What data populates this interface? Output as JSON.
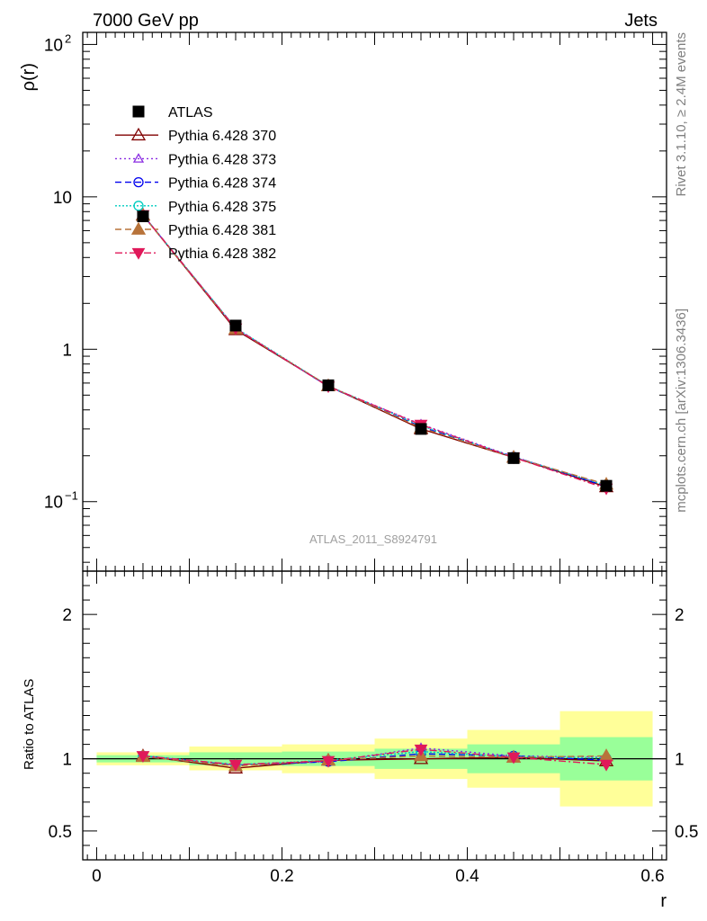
{
  "header": {
    "left": "7000 GeV pp",
    "right": "Jets"
  },
  "side": {
    "rivet": "Rivet 3.1.10, ≥ 2.4M events",
    "mcplots": "mcplots.cern.ch [arXiv:1306.3436]"
  },
  "watermark": "ATLAS_2011_S8924791",
  "chart_data": {
    "type": "line",
    "x_edges": [
      0.0,
      0.1,
      0.2,
      0.3,
      0.4,
      0.5,
      0.6
    ],
    "x": [
      0.05,
      0.15,
      0.25,
      0.35,
      0.45,
      0.55
    ],
    "xlabel": "r",
    "xlim": [
      -0.015,
      0.615
    ],
    "xticks": [
      {
        "v": 0,
        "label": "0"
      },
      {
        "v": 0.2,
        "label": "0.2"
      },
      {
        "v": 0.4,
        "label": "0.4"
      },
      {
        "v": 0.6,
        "label": "0.6"
      }
    ],
    "main": {
      "ylabel": "ρ(r)",
      "yscale": "log",
      "ylim": [
        0.035,
        120
      ],
      "yticks": [
        {
          "v": 0.1,
          "base": "10",
          "exp": "−1"
        },
        {
          "v": 1,
          "base": "1",
          "exp": ""
        },
        {
          "v": 10,
          "base": "10",
          "exp": ""
        },
        {
          "v": 100,
          "base": "10",
          "exp": "2"
        }
      ]
    },
    "ratio": {
      "ylabel": "Ratio to ATLAS",
      "ylim": [
        0.3,
        2.3
      ],
      "yticks": [
        {
          "v": 0.5,
          "label": "0.5"
        },
        {
          "v": 1,
          "label": "1"
        },
        {
          "v": 2,
          "label": "2"
        }
      ],
      "band_inner": [
        [
          0.975,
          1.025
        ],
        [
          0.955,
          1.045
        ],
        [
          0.95,
          1.05
        ],
        [
          0.93,
          1.07
        ],
        [
          0.9,
          1.1
        ],
        [
          0.85,
          1.15
        ]
      ],
      "band_outer": [
        [
          0.955,
          1.045
        ],
        [
          0.92,
          1.085
        ],
        [
          0.9,
          1.1
        ],
        [
          0.86,
          1.14
        ],
        [
          0.8,
          1.2
        ],
        [
          0.67,
          1.33
        ]
      ]
    },
    "series": [
      {
        "name": "ATLAS",
        "color": "#000000",
        "marker": "square",
        "dash": "",
        "values": [
          7.45,
          1.43,
          0.58,
          0.3,
          0.193,
          0.127
        ],
        "errors": [
          0.15,
          0.06,
          0.025,
          0.012,
          0.008,
          0.007
        ],
        "ratio": [
          1,
          1,
          1,
          1,
          1,
          1
        ]
      },
      {
        "name": "Pythia 6.428 370",
        "color": "#800000",
        "marker": "triangle-open",
        "dash": "",
        "values": [
          7.6,
          1.34,
          0.575,
          0.3,
          0.195,
          0.125
        ],
        "ratio": [
          1.02,
          0.935,
          0.99,
          1.0,
          1.01,
          0.985
        ]
      },
      {
        "name": "Pythia 6.428 373",
        "color": "#8a2be2",
        "marker": "triangle-open-small",
        "dash": "2,3",
        "values": [
          7.6,
          1.37,
          0.57,
          0.322,
          0.197,
          0.128
        ],
        "ratio": [
          1.02,
          0.955,
          0.98,
          1.075,
          1.02,
          1.01
        ]
      },
      {
        "name": "Pythia 6.428 374",
        "color": "#0000ee",
        "marker": "circle-open",
        "dash": "7,4",
        "values": [
          7.6,
          1.37,
          0.57,
          0.31,
          0.197,
          0.126
        ],
        "ratio": [
          1.02,
          0.955,
          0.98,
          1.035,
          1.02,
          0.99
        ]
      },
      {
        "name": "Pythia 6.428 375",
        "color": "#00cdc0",
        "marker": "circle-open",
        "dash": "2,2",
        "values": [
          7.6,
          1.38,
          0.575,
          0.315,
          0.196,
          0.128
        ],
        "ratio": [
          1.02,
          0.96,
          0.99,
          1.05,
          1.015,
          1.005
        ]
      },
      {
        "name": "Pythia 6.428 381",
        "color": "#b8733a",
        "marker": "triangle-filled",
        "dash": "7,4",
        "values": [
          7.55,
          1.36,
          0.575,
          0.305,
          0.195,
          0.13
        ],
        "ratio": [
          1.015,
          0.95,
          0.99,
          1.02,
          1.01,
          1.02
        ]
      },
      {
        "name": "Pythia 6.428 382",
        "color": "#e0195a",
        "marker": "triangle-down-filled",
        "dash": "8,3,2,3",
        "values": [
          7.6,
          1.37,
          0.57,
          0.32,
          0.195,
          0.122
        ],
        "ratio": [
          1.02,
          0.96,
          0.985,
          1.065,
          1.01,
          0.96
        ]
      }
    ]
  }
}
